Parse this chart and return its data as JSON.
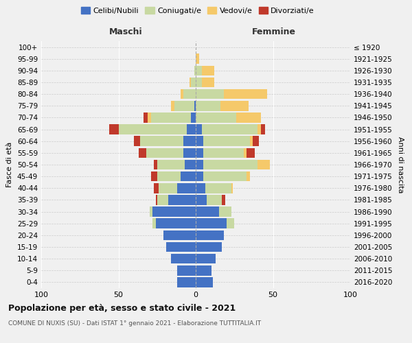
{
  "age_groups": [
    "100+",
    "95-99",
    "90-94",
    "85-89",
    "80-84",
    "75-79",
    "70-74",
    "65-69",
    "60-64",
    "55-59",
    "50-54",
    "45-49",
    "40-44",
    "35-39",
    "30-34",
    "25-29",
    "20-24",
    "15-19",
    "10-14",
    "5-9",
    "0-4"
  ],
  "birth_years": [
    "≤ 1920",
    "1921-1925",
    "1926-1930",
    "1931-1935",
    "1936-1940",
    "1941-1945",
    "1946-1950",
    "1951-1955",
    "1956-1960",
    "1961-1965",
    "1966-1970",
    "1971-1975",
    "1976-1980",
    "1981-1985",
    "1986-1990",
    "1991-1995",
    "1996-2000",
    "2001-2005",
    "2006-2010",
    "2011-2015",
    "2016-2020"
  ],
  "colors": {
    "celibe": "#4472c4",
    "coniugato": "#c8d9a2",
    "vedovo": "#f5c96a",
    "divorziato": "#c0392b"
  },
  "maschi": {
    "celibe": [
      0,
      0,
      0,
      0,
      0,
      1,
      3,
      6,
      8,
      8,
      7,
      10,
      12,
      18,
      28,
      26,
      21,
      19,
      16,
      12,
      12
    ],
    "coniugato": [
      0,
      0,
      1,
      3,
      8,
      13,
      26,
      44,
      28,
      24,
      18,
      15,
      12,
      7,
      2,
      2,
      0,
      0,
      0,
      0,
      0
    ],
    "vedovo": [
      0,
      0,
      0,
      1,
      2,
      2,
      2,
      0,
      0,
      0,
      0,
      0,
      0,
      0,
      0,
      0,
      0,
      0,
      0,
      0,
      0
    ],
    "divorziato": [
      0,
      0,
      0,
      0,
      0,
      0,
      3,
      6,
      4,
      5,
      2,
      4,
      3,
      1,
      0,
      0,
      0,
      0,
      0,
      0,
      0
    ]
  },
  "femmine": {
    "nubile": [
      0,
      0,
      0,
      0,
      0,
      0,
      0,
      4,
      5,
      5,
      5,
      5,
      6,
      7,
      15,
      20,
      18,
      17,
      13,
      10,
      11
    ],
    "coniugata": [
      0,
      0,
      4,
      4,
      18,
      16,
      26,
      36,
      30,
      26,
      35,
      28,
      17,
      10,
      8,
      5,
      0,
      0,
      0,
      0,
      0
    ],
    "vedova": [
      0,
      2,
      8,
      8,
      28,
      18,
      16,
      2,
      2,
      2,
      8,
      2,
      1,
      0,
      0,
      0,
      0,
      0,
      0,
      0,
      0
    ],
    "divorziata": [
      0,
      0,
      0,
      0,
      0,
      0,
      0,
      3,
      4,
      5,
      0,
      0,
      0,
      2,
      0,
      0,
      0,
      0,
      0,
      0,
      0
    ]
  },
  "xlim": [
    -100,
    100
  ],
  "xticks": [
    -100,
    -50,
    0,
    50,
    100
  ],
  "xticklabels": [
    "100",
    "50",
    "0",
    "50",
    "100"
  ],
  "title": "Popolazione per età, sesso e stato civile - 2021",
  "subtitle": "COMUNE DI NUXIS (SU) - Dati ISTAT 1° gennaio 2021 - Elaborazione TUTTITALIA.IT",
  "ylabel_left": "Fasce di età",
  "ylabel_right": "Anni di nascita",
  "label_maschi": "Maschi",
  "label_femmine": "Femmine",
  "legend_labels": [
    "Celibi/Nubili",
    "Coniugati/e",
    "Vedovi/e",
    "Divorziati/e"
  ],
  "bg_color": "#f0f0f0",
  "bar_height": 0.85
}
